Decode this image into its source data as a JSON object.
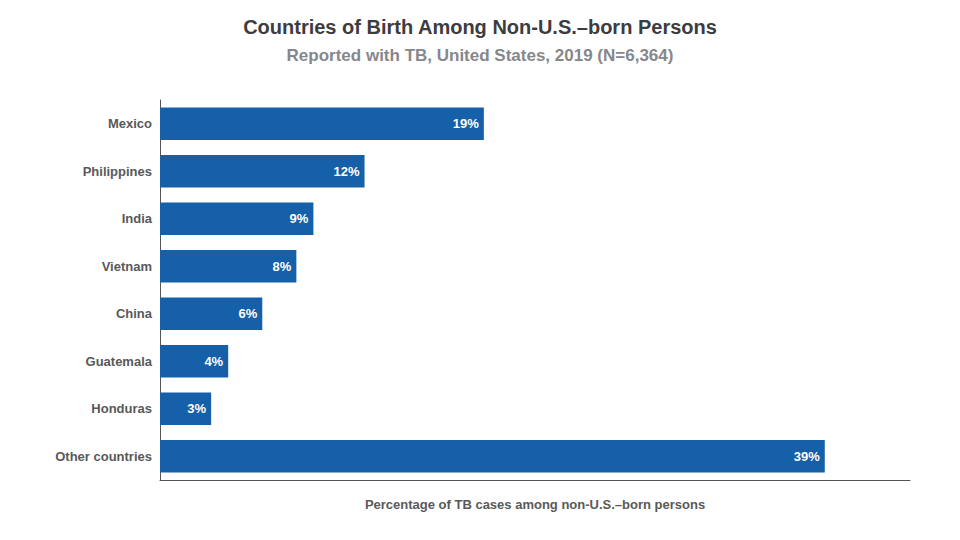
{
  "chart_data": {
    "type": "bar",
    "orientation": "horizontal",
    "title": "Countries of Birth Among Non-U.S.–born Persons",
    "subtitle": "Reported with TB, United States, 2019 (N=6,364)",
    "xlabel": "Percentage of TB cases among non-U.S.–born persons",
    "categories": [
      "Mexico",
      "Philippines",
      "India",
      "Vietnam",
      "China",
      "Guatemala",
      "Honduras",
      "Other countries"
    ],
    "values": [
      19,
      12,
      9,
      8,
      6,
      4,
      3,
      39
    ],
    "value_labels": [
      "19%",
      "12%",
      "9%",
      "8%",
      "6%",
      "4%",
      "3%",
      "39%"
    ],
    "data_labels": true,
    "color": "#1560a8",
    "xlim": [
      0,
      44
    ],
    "xticks": [],
    "tick_labels": "y",
    "grid": false
  }
}
